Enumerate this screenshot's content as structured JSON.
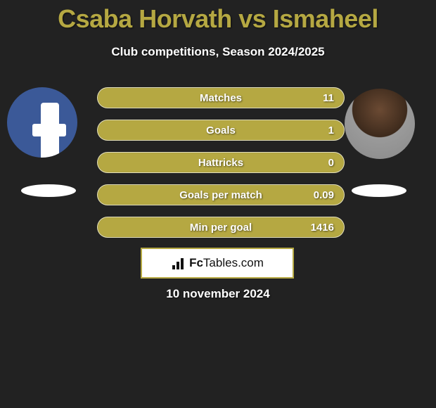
{
  "header": {
    "title": "Csaba Horvath vs Ismaheel",
    "subtitle": "Club competitions, Season 2024/2025"
  },
  "colors": {
    "accent": "#b5a842",
    "background": "#222222",
    "pill_border": "#ffffff",
    "text": "#ffffff"
  },
  "players": {
    "left": {
      "name": "Csaba Horvath"
    },
    "right": {
      "name": "Ismaheel"
    }
  },
  "stats": [
    {
      "label": "Matches",
      "value": "11"
    },
    {
      "label": "Goals",
      "value": "1"
    },
    {
      "label": "Hattricks",
      "value": "0"
    },
    {
      "label": "Goals per match",
      "value": "0.09"
    },
    {
      "label": "Min per goal",
      "value": "1416"
    }
  ],
  "brand": {
    "prefix": "Fc",
    "suffix": "Tables.com"
  },
  "footer": {
    "date": "10 november 2024"
  }
}
